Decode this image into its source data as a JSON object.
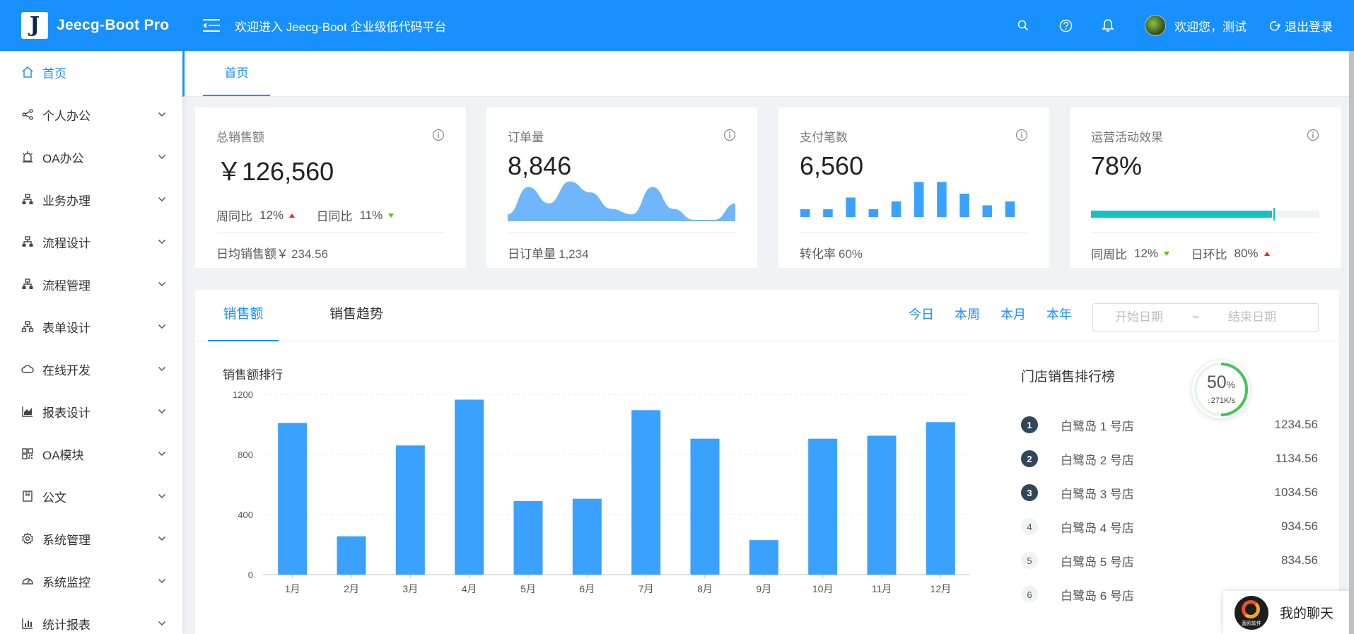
{
  "header": {
    "logo_letter": "J",
    "app_name": "Jeecg-Boot Pro",
    "welcome_title": "欢迎进入 Jeecg-Boot 企业级低代码平台",
    "user_greeting": "欢迎您，测试",
    "logout_label": "退出登录"
  },
  "sidebar": {
    "items": [
      {
        "label": "首页",
        "icon": "home-icon",
        "active": true
      },
      {
        "label": "个人办公",
        "icon": "share-icon"
      },
      {
        "label": "OA办公",
        "icon": "alarm-icon"
      },
      {
        "label": "业务办理",
        "icon": "apartment-icon"
      },
      {
        "label": "流程设计",
        "icon": "apartment-icon"
      },
      {
        "label": "流程管理",
        "icon": "apartment-icon"
      },
      {
        "label": "表单设计",
        "icon": "cluster-icon"
      },
      {
        "label": "在线开发",
        "icon": "cloud-icon"
      },
      {
        "label": "报表设计",
        "icon": "area-chart-icon"
      },
      {
        "label": "OA模块",
        "icon": "qrcode-icon"
      },
      {
        "label": "公文",
        "icon": "book-icon"
      },
      {
        "label": "系统管理",
        "icon": "setting-icon"
      },
      {
        "label": "系统监控",
        "icon": "dashboard-icon"
      },
      {
        "label": "统计报表",
        "icon": "bar-chart-icon"
      }
    ]
  },
  "tabs": {
    "home": "首页"
  },
  "cards": {
    "sales": {
      "title": "总销售额",
      "value": "￥126,560",
      "week_label": "周同比",
      "week_value": "12%",
      "day_label": "日同比",
      "day_value": "11%",
      "foot_label": "日均销售额￥",
      "foot_value": "234.56"
    },
    "orders": {
      "title": "订单量",
      "value": "8,846",
      "foot_label": "日订单量",
      "foot_value": "1,234",
      "area_values": [
        1,
        6,
        3,
        7,
        5,
        2,
        1,
        6,
        2,
        0,
        0,
        3
      ]
    },
    "payments": {
      "title": "支付笔数",
      "value": "6,560",
      "foot_label": "转化率",
      "foot_value": "60%",
      "bar_values": [
        2,
        2,
        5,
        2,
        4,
        9,
        9,
        6,
        3,
        4
      ]
    },
    "operations": {
      "title": "运营活动效果",
      "value": "78%",
      "progress": 0.8,
      "target": 0.8,
      "week_label": "同周比",
      "week_value": "12%",
      "day_label": "日环比",
      "day_value": "80%"
    }
  },
  "panel": {
    "tab_sales": "销售额",
    "tab_trend": "销售趋势",
    "ranges": [
      "今日",
      "本周",
      "本月",
      "本年"
    ],
    "date_start_placeholder": "开始日期",
    "date_sep": "~",
    "date_end_placeholder": "结束日期",
    "chart_title": "销售额排行",
    "rank_title": "门店销售排行榜",
    "rank_items": [
      {
        "no": "1",
        "name": "白鹭岛 1 号店",
        "value": "1234.56"
      },
      {
        "no": "2",
        "name": "白鹭岛 2 号店",
        "value": "1134.56"
      },
      {
        "no": "3",
        "name": "白鹭岛 3 号店",
        "value": "1034.56"
      },
      {
        "no": "4",
        "name": "白鹭岛 4 号店",
        "value": "934.56"
      },
      {
        "no": "5",
        "name": "白鹭岛 5 号店",
        "value": "834.56"
      },
      {
        "no": "6",
        "name": "白鹭岛 6 号店",
        "value": ""
      }
    ]
  },
  "speed_widget": {
    "percent": "50",
    "percent_unit": "%",
    "rate": "271K/s",
    "ratio": 0.5
  },
  "chat_widget": {
    "label": "我的聊天",
    "logo_text": "蓝鸥软件"
  },
  "colors": {
    "primary": "#1890ff",
    "bar": "#3aa1ff",
    "progress": "#13c2c2",
    "up": "#f5222d",
    "down": "#52c41a"
  },
  "chart_data": {
    "type": "bar",
    "title": "销售额排行",
    "categories": [
      "1月",
      "2月",
      "3月",
      "4月",
      "5月",
      "6月",
      "7月",
      "8月",
      "9月",
      "10月",
      "11月",
      "12月"
    ],
    "values": [
      1010,
      255,
      860,
      1165,
      490,
      505,
      1095,
      905,
      230,
      905,
      925,
      1015
    ],
    "ylim": [
      0,
      1200
    ],
    "yticks": [
      0,
      400,
      800,
      1200
    ],
    "grid": true
  }
}
